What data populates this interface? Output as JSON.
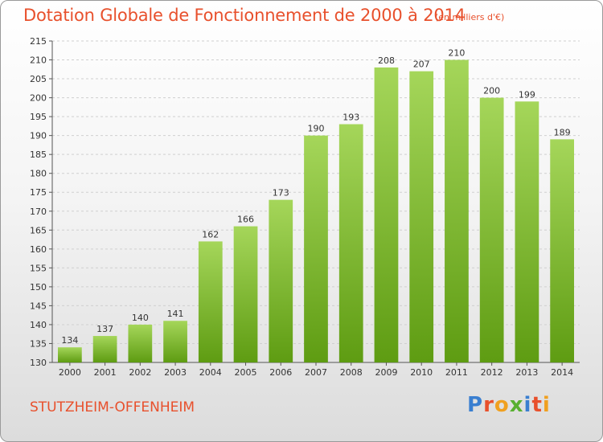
{
  "chart_data": {
    "type": "bar",
    "title": "Dotation Globale de Fonctionnement de 2000 à 2014",
    "subtitle": "(en milliers d'€)",
    "categories": [
      "2000",
      "2001",
      "2002",
      "2003",
      "2004",
      "2005",
      "2006",
      "2007",
      "2008",
      "2009",
      "2010",
      "2011",
      "2012",
      "2013",
      "2014"
    ],
    "values": [
      134,
      137,
      140,
      141,
      162,
      166,
      173,
      190,
      193,
      208,
      207,
      210,
      200,
      199,
      189
    ],
    "ylim": [
      130,
      215
    ],
    "yticks": [
      130,
      135,
      140,
      145,
      150,
      155,
      160,
      165,
      170,
      175,
      180,
      185,
      190,
      195,
      200,
      205,
      210,
      215
    ],
    "grid": true,
    "bar_color": "#7cbf2e",
    "xlabel": "",
    "ylabel": ""
  },
  "commune": "STUTZHEIM-OFFENHEIM",
  "logo": {
    "letters": [
      "P",
      "r",
      "o",
      "x",
      "i",
      "t",
      "i"
    ],
    "colors": [
      "#3a7fd0",
      "#e8502c",
      "#f0a020",
      "#58b030",
      "#3a7fd0",
      "#e8502c",
      "#f0a020"
    ]
  }
}
